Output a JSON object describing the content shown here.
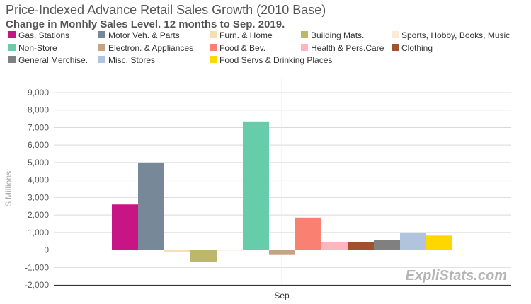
{
  "title": "Price-Indexed Advance Retail Sales Growth (2010 Base)",
  "subtitle": "Change in Monhly Sales Level. 12 months to Sep. 2019.",
  "watermark": "ExpliStats.com",
  "chart_data": {
    "type": "bar",
    "categories": [
      "Sep"
    ],
    "ylabel": "$ Millions",
    "ylim": [
      -2000,
      9000
    ],
    "yticks": [
      -2000,
      -1000,
      0,
      1000,
      2000,
      3000,
      4000,
      5000,
      6000,
      7000,
      8000,
      9000
    ],
    "ytick_labels": [
      "-2,000",
      "-1,000",
      "0",
      "1,000",
      "2,000",
      "3,000",
      "4,000",
      "5,000",
      "6,000",
      "7,000",
      "8,000",
      "9,000"
    ],
    "grid": true,
    "legend_position": "top",
    "series": [
      {
        "name": "Gas. Stations",
        "color": "#c71585",
        "values": [
          2600
        ]
      },
      {
        "name": "Motor Veh. & Parts",
        "color": "#778899",
        "values": [
          5000
        ]
      },
      {
        "name": "Furn. & Home",
        "color": "#f5deb3",
        "values": [
          -120
        ]
      },
      {
        "name": "Building Mats.",
        "color": "#bdb76b",
        "values": [
          -700
        ]
      },
      {
        "name": "Sports, Hobby, Books, Music",
        "color": "#faebd7",
        "values": [
          -30
        ]
      },
      {
        "name": "Non-Store",
        "color": "#66cdaa",
        "values": [
          7350
        ]
      },
      {
        "name": "Electron. & Appliances",
        "color": "#c4a484",
        "values": [
          -250
        ]
      },
      {
        "name": "Food & Bev.",
        "color": "#fa8072",
        "values": [
          1850
        ]
      },
      {
        "name": "Health & Pers.Care",
        "color": "#ffb6c1",
        "values": [
          430
        ]
      },
      {
        "name": "Clothing",
        "color": "#a0522d",
        "values": [
          430
        ]
      },
      {
        "name": "General Merchise.",
        "color": "#808080",
        "values": [
          570
        ]
      },
      {
        "name": "Misc. Stores",
        "color": "#b0c4de",
        "values": [
          980
        ]
      },
      {
        "name": "Food Servs & Drinking Places",
        "color": "#ffd700",
        "values": [
          820
        ]
      }
    ]
  }
}
